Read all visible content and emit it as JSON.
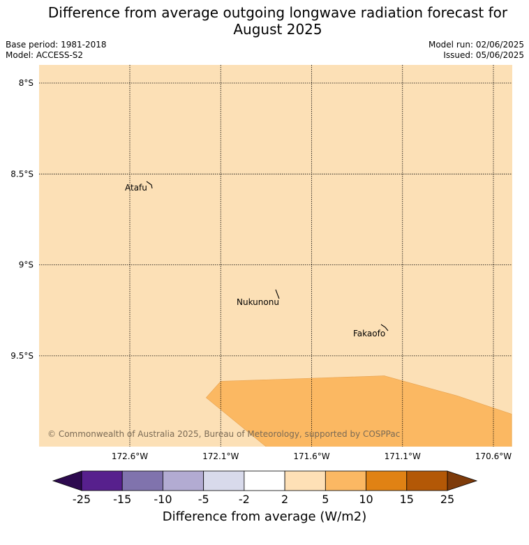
{
  "title_line1": "Difference from average outgoing longwave radiation forecast for",
  "title_line2": "August 2025",
  "info": {
    "base_period": "Base period: 1981-2018",
    "model": "Model: ACCESS-S2",
    "model_run": "Model run: 02/06/2025",
    "issued": "Issued: 05/06/2025"
  },
  "map": {
    "background_color": "#fce0b6",
    "anomaly_color": "#fbb862",
    "lon_range": [
      -173.1,
      -170.5
    ],
    "lat_range": [
      -10.0,
      -7.9
    ],
    "lon_ticks": [
      {
        "value": -172.6,
        "label": "172.6°W"
      },
      {
        "value": -172.1,
        "label": "172.1°W"
      },
      {
        "value": -171.6,
        "label": "171.6°W"
      },
      {
        "value": -171.1,
        "label": "171.1°W"
      },
      {
        "value": -170.6,
        "label": "170.6°W"
      }
    ],
    "lat_ticks": [
      {
        "value": -8.0,
        "label": "8°S"
      },
      {
        "value": -8.5,
        "label": "8.5°S"
      },
      {
        "value": -9.0,
        "label": "9°S"
      },
      {
        "value": -9.5,
        "label": "9.5°S"
      }
    ],
    "anomaly_region": {
      "range": "5 to 10",
      "polygon": [
        [
          -172.18,
          -9.73
        ],
        [
          -172.1,
          -9.64
        ],
        [
          -171.2,
          -9.61
        ],
        [
          -170.8,
          -9.72
        ],
        [
          -170.5,
          -9.82
        ],
        [
          -170.5,
          -10.0
        ],
        [
          -171.85,
          -10.0
        ]
      ]
    },
    "places": [
      {
        "name": "Atafu",
        "lon": -172.49,
        "lat": -8.56
      },
      {
        "name": "Nukunonu",
        "lon": -171.8,
        "lat": -9.17
      },
      {
        "name": "Fakaofo",
        "lon": -171.23,
        "lat": -9.36
      }
    ],
    "copyright": "© Commonwealth of Australia 2025, Bureau of Meteorology, supported by COSPPac"
  },
  "colorbar": {
    "label": "Difference from average (W/m2)",
    "ticks": [
      "-25",
      "-15",
      "-10",
      "-5",
      "-2",
      "2",
      "5",
      "10",
      "15",
      "25"
    ],
    "under_color": "#2d0a4f",
    "over_color": "#7e3b0a",
    "colors": [
      "#57208d",
      "#8073ad",
      "#b2abd2",
      "#d8daeb",
      "#ffffff",
      "#fee0b6",
      "#fbb863",
      "#e08214",
      "#b35806"
    ]
  }
}
